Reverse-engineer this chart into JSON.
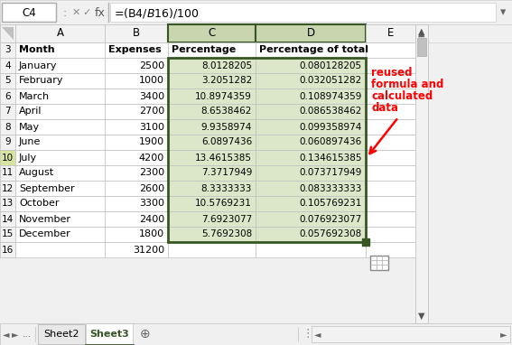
{
  "formula_bar_cell": "C4",
  "formula_bar_formula": "=(B4/$B$16)/100",
  "col_headers": [
    "A",
    "B",
    "C",
    "D",
    "E"
  ],
  "months": [
    "January",
    "February",
    "March",
    "April",
    "May",
    "June",
    "July",
    "August",
    "September",
    "October",
    "November",
    "December"
  ],
  "expenses": [
    2500,
    1000,
    3400,
    2700,
    3100,
    1900,
    4200,
    2300,
    2600,
    3300,
    2400,
    1800
  ],
  "total": 31200,
  "percentages": [
    "8.0128205",
    "3.2051282",
    "10.8974359",
    "8.6538462",
    "9.9358974",
    "6.0897436",
    "13.4615385",
    "7.3717949",
    "8.3333333",
    "10.5769231",
    "7.6923077",
    "5.7692308"
  ],
  "pct_of_total": [
    "0.080128205",
    "0.032051282",
    "0.108974359",
    "0.086538462",
    "0.099358974",
    "0.060897436",
    "0.134615385",
    "0.073717949",
    "0.083333333",
    "0.105769231",
    "0.076923077",
    "0.057692308"
  ],
  "annotation_lines": [
    "reused",
    "formula and",
    "calculated",
    "data"
  ],
  "annotation_color": "#ff0000",
  "tab_active_color": "#375623",
  "selection_border_color": "#375623",
  "selected_col_header_bg": "#c8d5ae",
  "selected_cell_bg": "#dce6c8",
  "normal_cell_bg": "#ffffff",
  "header_row_bg": "#f2f2f2",
  "col_header_bg": "#f2f2f2",
  "row_num_bg": "#f2f2f2",
  "july_row_num_bg": "#d6e4a0"
}
